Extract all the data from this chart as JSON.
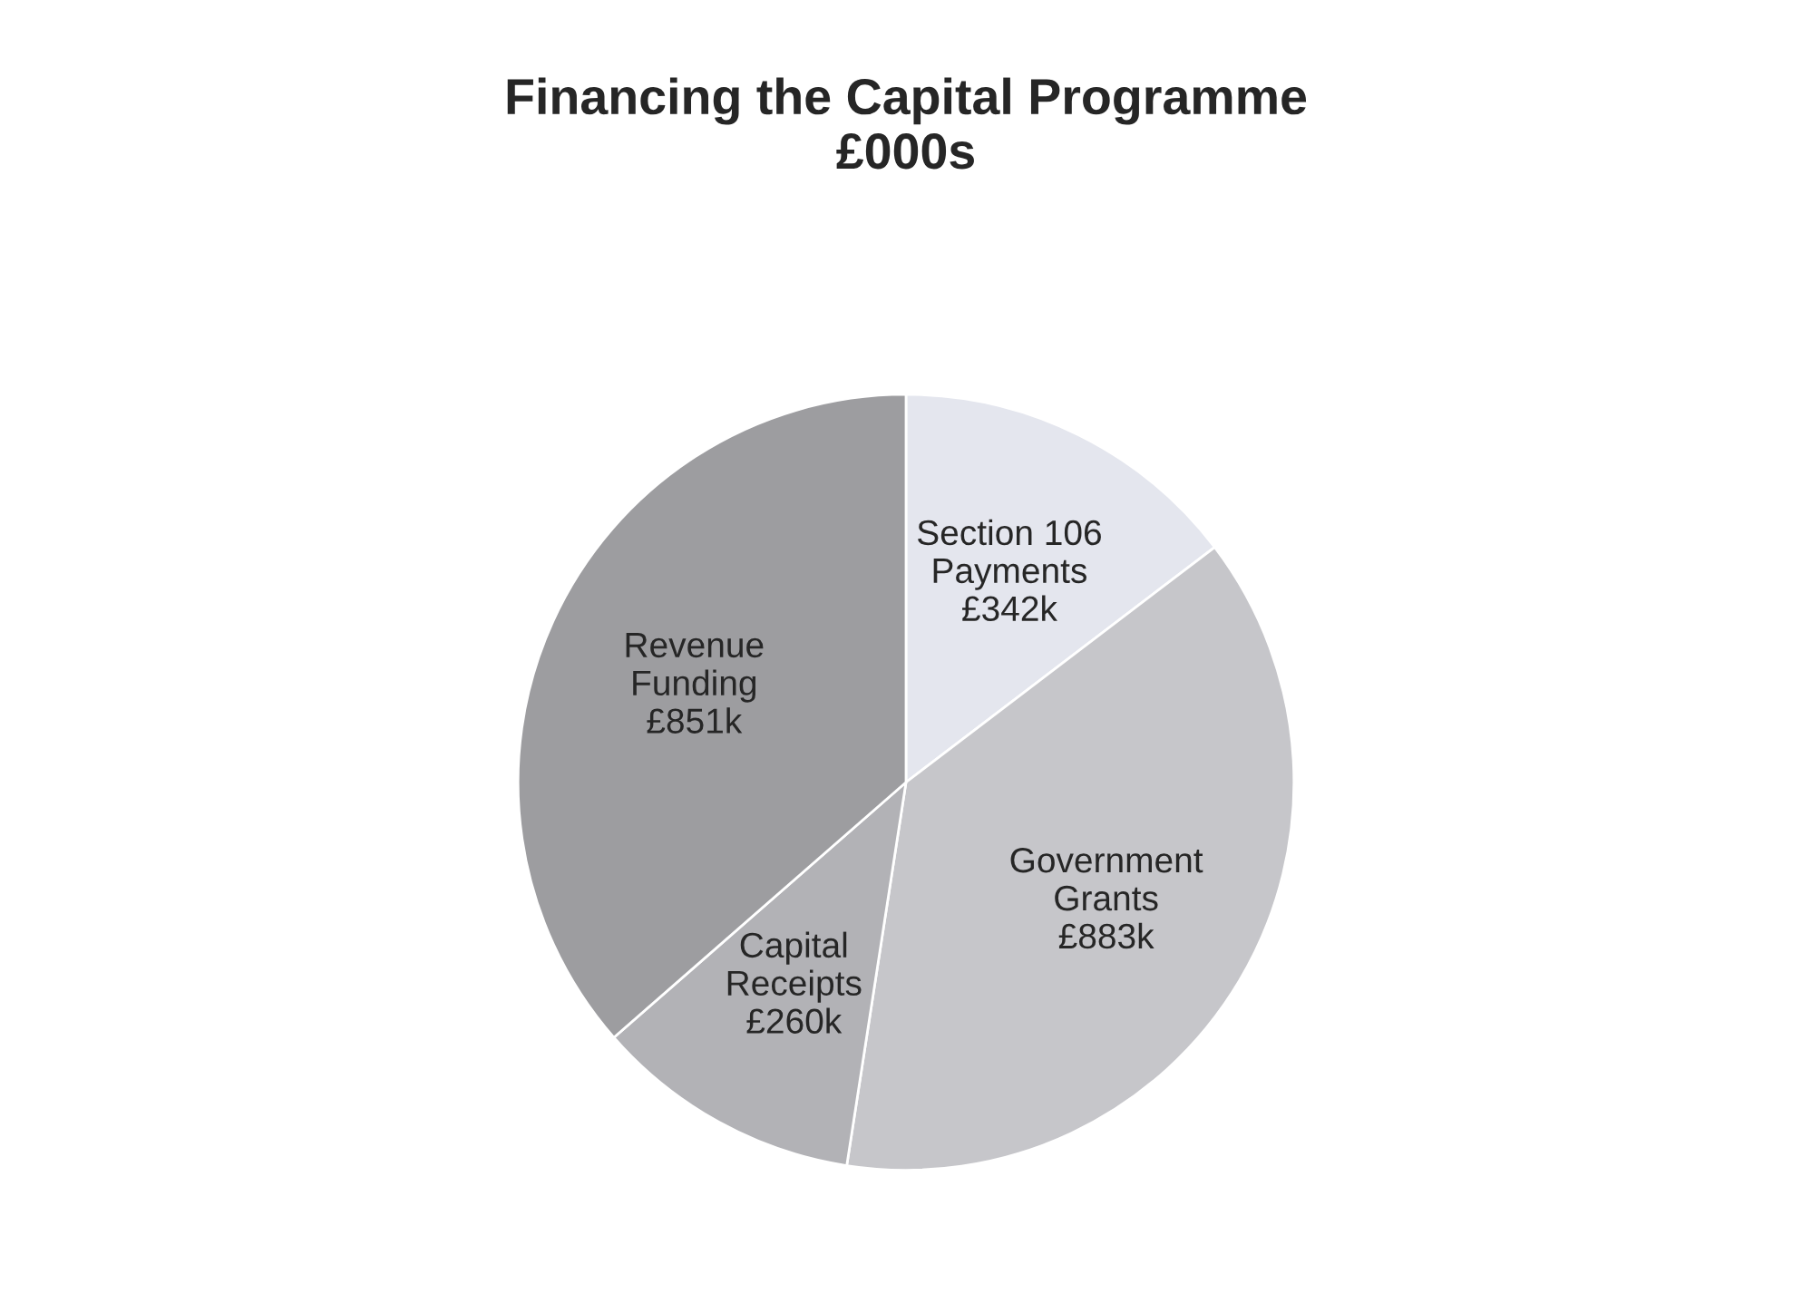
{
  "chart_data": {
    "type": "pie",
    "title": "Financing the Capital Programme\n£000s",
    "categories": [
      "Section 106 Payments",
      "Government Grants",
      "Capital Receipts",
      "Revenue Funding"
    ],
    "values": [
      342,
      883,
      260,
      851
    ],
    "value_labels": [
      "£342k",
      "£883k",
      "£260k",
      "£851k"
    ],
    "colors": [
      "#e4e6ee",
      "#c6c6ca",
      "#b2b2b6",
      "#9d9da0"
    ],
    "legend": false
  }
}
